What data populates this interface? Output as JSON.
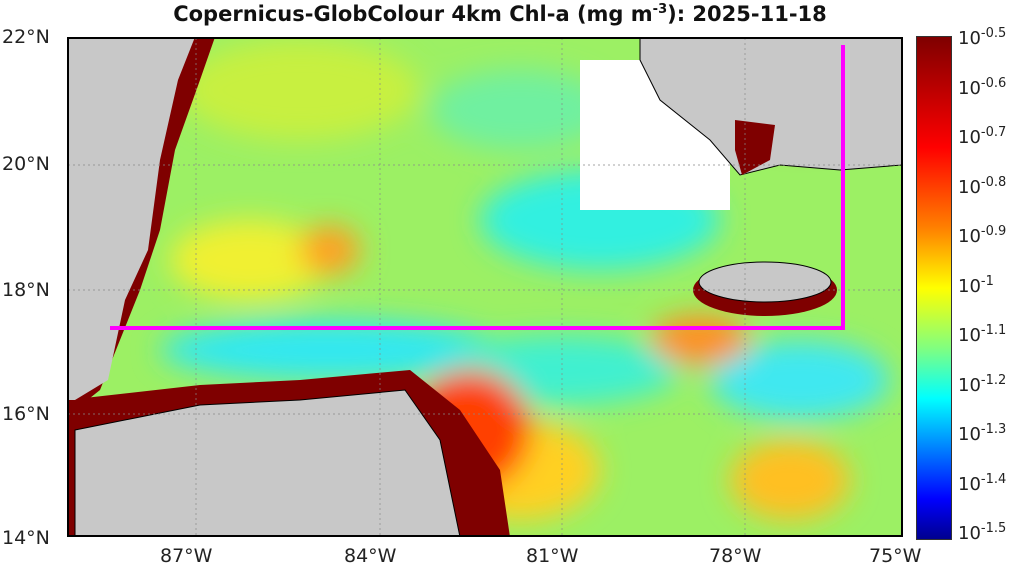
{
  "title": {
    "prefix": "Copernicus-GlobColour 4km Chl-a (mg m",
    "sup": "-3",
    "suffix": "): 2025-11-18"
  },
  "lat_labels": [
    "22°N",
    "20°N",
    "18°N",
    "16°N",
    "14°N"
  ],
  "lon_labels": [
    "87°W",
    "84°W",
    "81°W",
    "78°W",
    "75°W"
  ],
  "colorbar": {
    "base": "10",
    "exponents": [
      "-0.5",
      "-0.6",
      "-0.7",
      "-0.8",
      "-0.9",
      "-1",
      "-1.1",
      "-1.2",
      "-1.3",
      "-1.4",
      "-1.5"
    ]
  },
  "colors": {
    "land": "#c8c8c8",
    "track": "#ff00ff",
    "high": "#7f0000"
  }
}
